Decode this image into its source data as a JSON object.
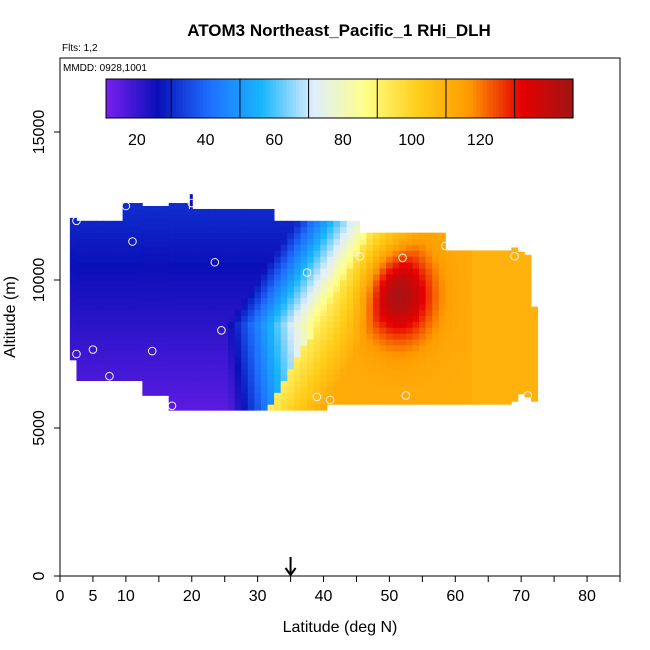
{
  "chart_data": {
    "type": "heatmap",
    "title": "ATOM3 Northeast_Pacific_1 RHi_DLH",
    "flights_label": "Flts: 1,2",
    "dates_label": "MMDD: 0928,1001",
    "xlabel": "Latitude (deg N)",
    "ylabel": "Altitude (m)",
    "xlim": [
      0,
      85
    ],
    "ylim": [
      0,
      17500
    ],
    "x_ticks": [
      0,
      5,
      10,
      20,
      30,
      40,
      50,
      60,
      70,
      80
    ],
    "y_ticks": [
      0,
      5000,
      10000,
      15000
    ],
    "colorbar": {
      "range": [
        1,
        137
      ],
      "ticks": [
        20,
        40,
        60,
        80,
        100,
        120
      ],
      "placement": "top"
    },
    "colormap": [
      "#7a1fef",
      "#0a10b8",
      "#1e6fff",
      "#19b6ff",
      "#dfeeff",
      "#ffff88",
      "#ffcf1a",
      "#ff9a00",
      "#e60000",
      "#a01515"
    ],
    "field_lat_range": [
      1.5,
      72
    ],
    "field_alt_range": [
      5600,
      12700
    ],
    "marker_latitude": 35,
    "profile_points": [
      {
        "lat": 2.5,
        "alt": 12000
      },
      {
        "lat": 10,
        "alt": 12500
      },
      {
        "lat": 11,
        "alt": 11300
      },
      {
        "lat": 20,
        "alt": 12600
      },
      {
        "lat": 23.5,
        "alt": 10600
      },
      {
        "lat": 24.5,
        "alt": 8300
      },
      {
        "lat": 37.5,
        "alt": 10250
      },
      {
        "lat": 40.5,
        "alt": 10250
      },
      {
        "lat": 45.5,
        "alt": 10800
      },
      {
        "lat": 52,
        "alt": 10750
      },
      {
        "lat": 58.5,
        "alt": 11150
      },
      {
        "lat": 69,
        "alt": 10800
      },
      {
        "lat": 2.5,
        "alt": 7500
      },
      {
        "lat": 5,
        "alt": 7650
      },
      {
        "lat": 7.5,
        "alt": 6750
      },
      {
        "lat": 14,
        "alt": 7600
      },
      {
        "lat": 17,
        "alt": 5750
      },
      {
        "lat": 39,
        "alt": 6050
      },
      {
        "lat": 41,
        "alt": 5950
      },
      {
        "lat": 52.5,
        "alt": 6100
      },
      {
        "lat": 71,
        "alt": 6100
      }
    ]
  }
}
